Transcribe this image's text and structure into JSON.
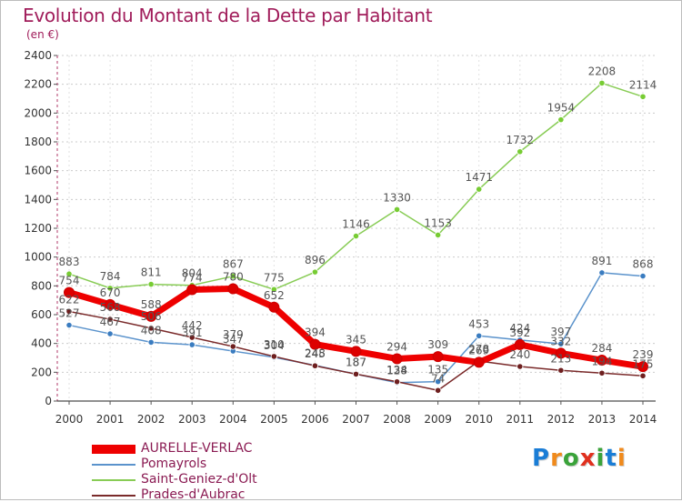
{
  "chart_data": {
    "type": "line",
    "title": "Evolution du Montant de la Dette par Habitant",
    "subtitle": "(en €)",
    "xlabel": "",
    "ylabel": "",
    "ylim": [
      0,
      2400
    ],
    "yticks": [
      0,
      200,
      400,
      600,
      800,
      1000,
      1200,
      1400,
      1600,
      1800,
      2000,
      2200,
      2400
    ],
    "x": [
      2000,
      2001,
      2002,
      2003,
      2004,
      2005,
      2006,
      2007,
      2008,
      2009,
      2010,
      2011,
      2012,
      2013,
      2014
    ],
    "grid": "horizontal dashed",
    "legend": "bottom-left",
    "series": [
      {
        "name": "Saint-Geniez-d'Olt",
        "color": "#88cc55",
        "marker": "#77cc33",
        "values": [
          883,
          784,
          811,
          804,
          867,
          775,
          896,
          1146,
          1330,
          1153,
          1471,
          1732,
          1954,
          2208,
          2114
        ]
      },
      {
        "name": "Pomayrols",
        "color": "#5b93cc",
        "marker": "#3a7cc0",
        "values": [
          527,
          467,
          408,
          391,
          347,
          304,
          248,
          187,
          128,
          135,
          453,
          424,
          397,
          891,
          868
        ]
      },
      {
        "name": "Prades-d'Aubrac",
        "color": "#7a2a2a",
        "marker": "#6e1f1f",
        "values": [
          622,
          568,
          506,
          442,
          379,
          310,
          245,
          187,
          134,
          74,
          278,
          240,
          213,
          194,
          175
        ]
      },
      {
        "name": "AURELLE-VERLAC",
        "color": "#ee0000",
        "marker": "#dd0000",
        "values": [
          754,
          670,
          588,
          774,
          780,
          652,
          394,
          345,
          294,
          309,
          269,
          392,
          332,
          284,
          239
        ]
      }
    ],
    "legend_order": [
      "AURELLE-VERLAC",
      "Pomayrols",
      "Saint-Geniez-d'Olt",
      "Prades-d'Aubrac"
    ]
  },
  "brand": {
    "letters": [
      "P",
      "r",
      "o",
      "x",
      "i",
      "t",
      "i"
    ],
    "colors": [
      "#1a7dd6",
      "#f08a1c",
      "#3aa33a",
      "#e0301e",
      "#3aa33a",
      "#1a7dd6",
      "#f08a1c"
    ]
  }
}
